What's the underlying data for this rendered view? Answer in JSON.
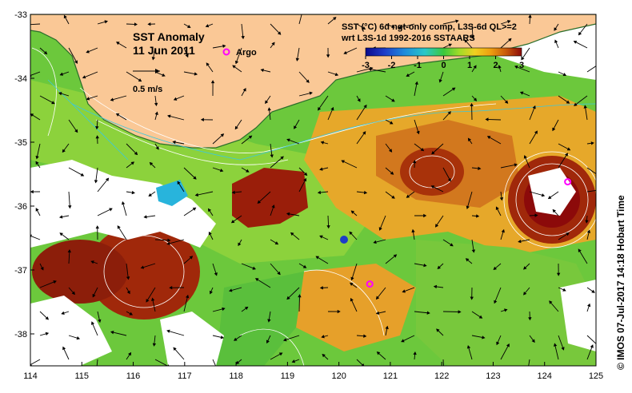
{
  "map": {
    "title": "SST Anomaly",
    "date": "11 Jun 2011",
    "argo_label": "Argo",
    "argo_color": "#ff00ff",
    "vector_scale_label": "0.5 m/s",
    "colorbar_title_line1": "SST (°C) 6d ngt-only comp, L3S-6d QL>=2",
    "colorbar_title_line2": "wrt L3S-1d 1992-2016 SSTAARS",
    "colorbar_ticks": [
      "-3",
      "-2",
      "-1",
      "0",
      "1",
      "2",
      "3"
    ],
    "colorbar_colors": [
      "#0a0a8c",
      "#1e3cc8",
      "#1e8cdc",
      "#28c8c8",
      "#3cc83c",
      "#a0dc28",
      "#f0d020",
      "#f0a010",
      "#c85a0a",
      "#8c0a0a"
    ],
    "credit": "© IMOS 07-Jul-2017 14:18 Hobart Time",
    "land_color": "#fac896",
    "lon_ticks": [
      "114",
      "115",
      "116",
      "117",
      "118",
      "119",
      "120",
      "121",
      "122",
      "123",
      "124",
      "125"
    ],
    "lat_ticks": [
      "-33",
      "-34",
      "-35",
      "-36",
      "-37",
      "-38"
    ],
    "argo_floats": [
      {
        "lon": 124.45,
        "lat": -35.62
      },
      {
        "lon": 120.6,
        "lat": -37.22
      }
    ]
  }
}
